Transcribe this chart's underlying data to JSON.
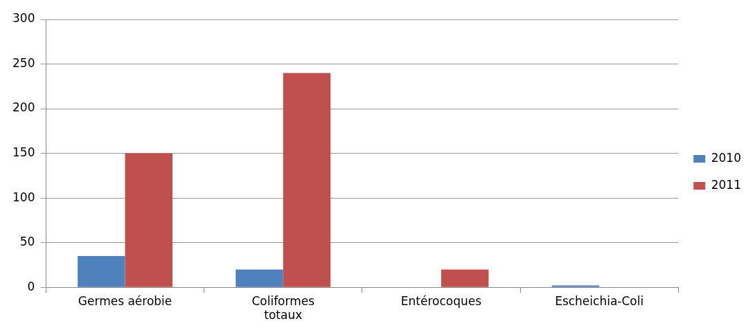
{
  "chart_data": {
    "type": "bar",
    "categories": [
      "Germes aérobie",
      "Coliformes totaux",
      "Entérocoques",
      "Escheichia-Coli"
    ],
    "series": [
      {
        "name": "2010",
        "color": "#4f81bd",
        "values": [
          35,
          20,
          0,
          2
        ]
      },
      {
        "name": "2011",
        "color": "#c0504d",
        "values": [
          150,
          240,
          20,
          0
        ]
      }
    ],
    "ylim": [
      0,
      300
    ],
    "yticks": [
      0,
      50,
      100,
      150,
      200,
      250,
      300
    ],
    "grid": "y",
    "legend": "right"
  }
}
